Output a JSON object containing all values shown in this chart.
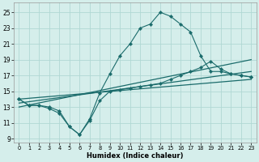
{
  "xlabel": "Humidex (Indice chaleur)",
  "xlim": [
    -0.5,
    23.5
  ],
  "ylim": [
    8.5,
    26.2
  ],
  "xticks": [
    0,
    1,
    2,
    3,
    4,
    5,
    6,
    7,
    8,
    9,
    10,
    11,
    12,
    13,
    14,
    15,
    16,
    17,
    18,
    19,
    20,
    21,
    22,
    23
  ],
  "yticks": [
    9,
    11,
    13,
    15,
    17,
    19,
    21,
    23,
    25
  ],
  "bg_color": "#d5eeeb",
  "grid_color": "#b0d8d4",
  "line_color": "#1a6b6b",
  "main_x": [
    0,
    1,
    2,
    3,
    4,
    5,
    6,
    7,
    8,
    9,
    10,
    11,
    12,
    13,
    14,
    15,
    16,
    17,
    18,
    19,
    20,
    21,
    22,
    23
  ],
  "main_y": [
    14.0,
    13.2,
    13.2,
    13.0,
    12.5,
    10.5,
    9.5,
    11.5,
    14.8,
    17.2,
    19.5,
    21.0,
    23.0,
    23.5,
    25.0,
    24.5,
    23.5,
    22.5,
    19.5,
    17.5,
    17.5,
    17.2,
    17.0,
    16.8
  ],
  "trend1_x": [
    0,
    23
  ],
  "trend1_y": [
    14.0,
    16.5
  ],
  "trend2_x": [
    0,
    23
  ],
  "trend2_y": [
    13.5,
    17.5
  ],
  "trend3_x": [
    0,
    23
  ],
  "trend3_y": [
    13.0,
    19.0
  ],
  "scatter2_x": [
    0,
    1,
    2,
    3,
    4,
    5,
    6,
    7,
    8,
    9,
    10,
    11,
    12,
    13,
    14,
    15,
    16,
    17,
    18,
    19,
    20,
    21,
    22,
    23
  ],
  "scatter2_y": [
    14.0,
    13.2,
    13.2,
    12.8,
    12.2,
    10.5,
    9.5,
    11.3,
    13.8,
    15.0,
    15.2,
    15.4,
    15.6,
    15.8,
    16.0,
    16.5,
    17.0,
    17.5,
    18.0,
    18.8,
    17.8,
    17.2,
    17.0,
    16.8
  ]
}
